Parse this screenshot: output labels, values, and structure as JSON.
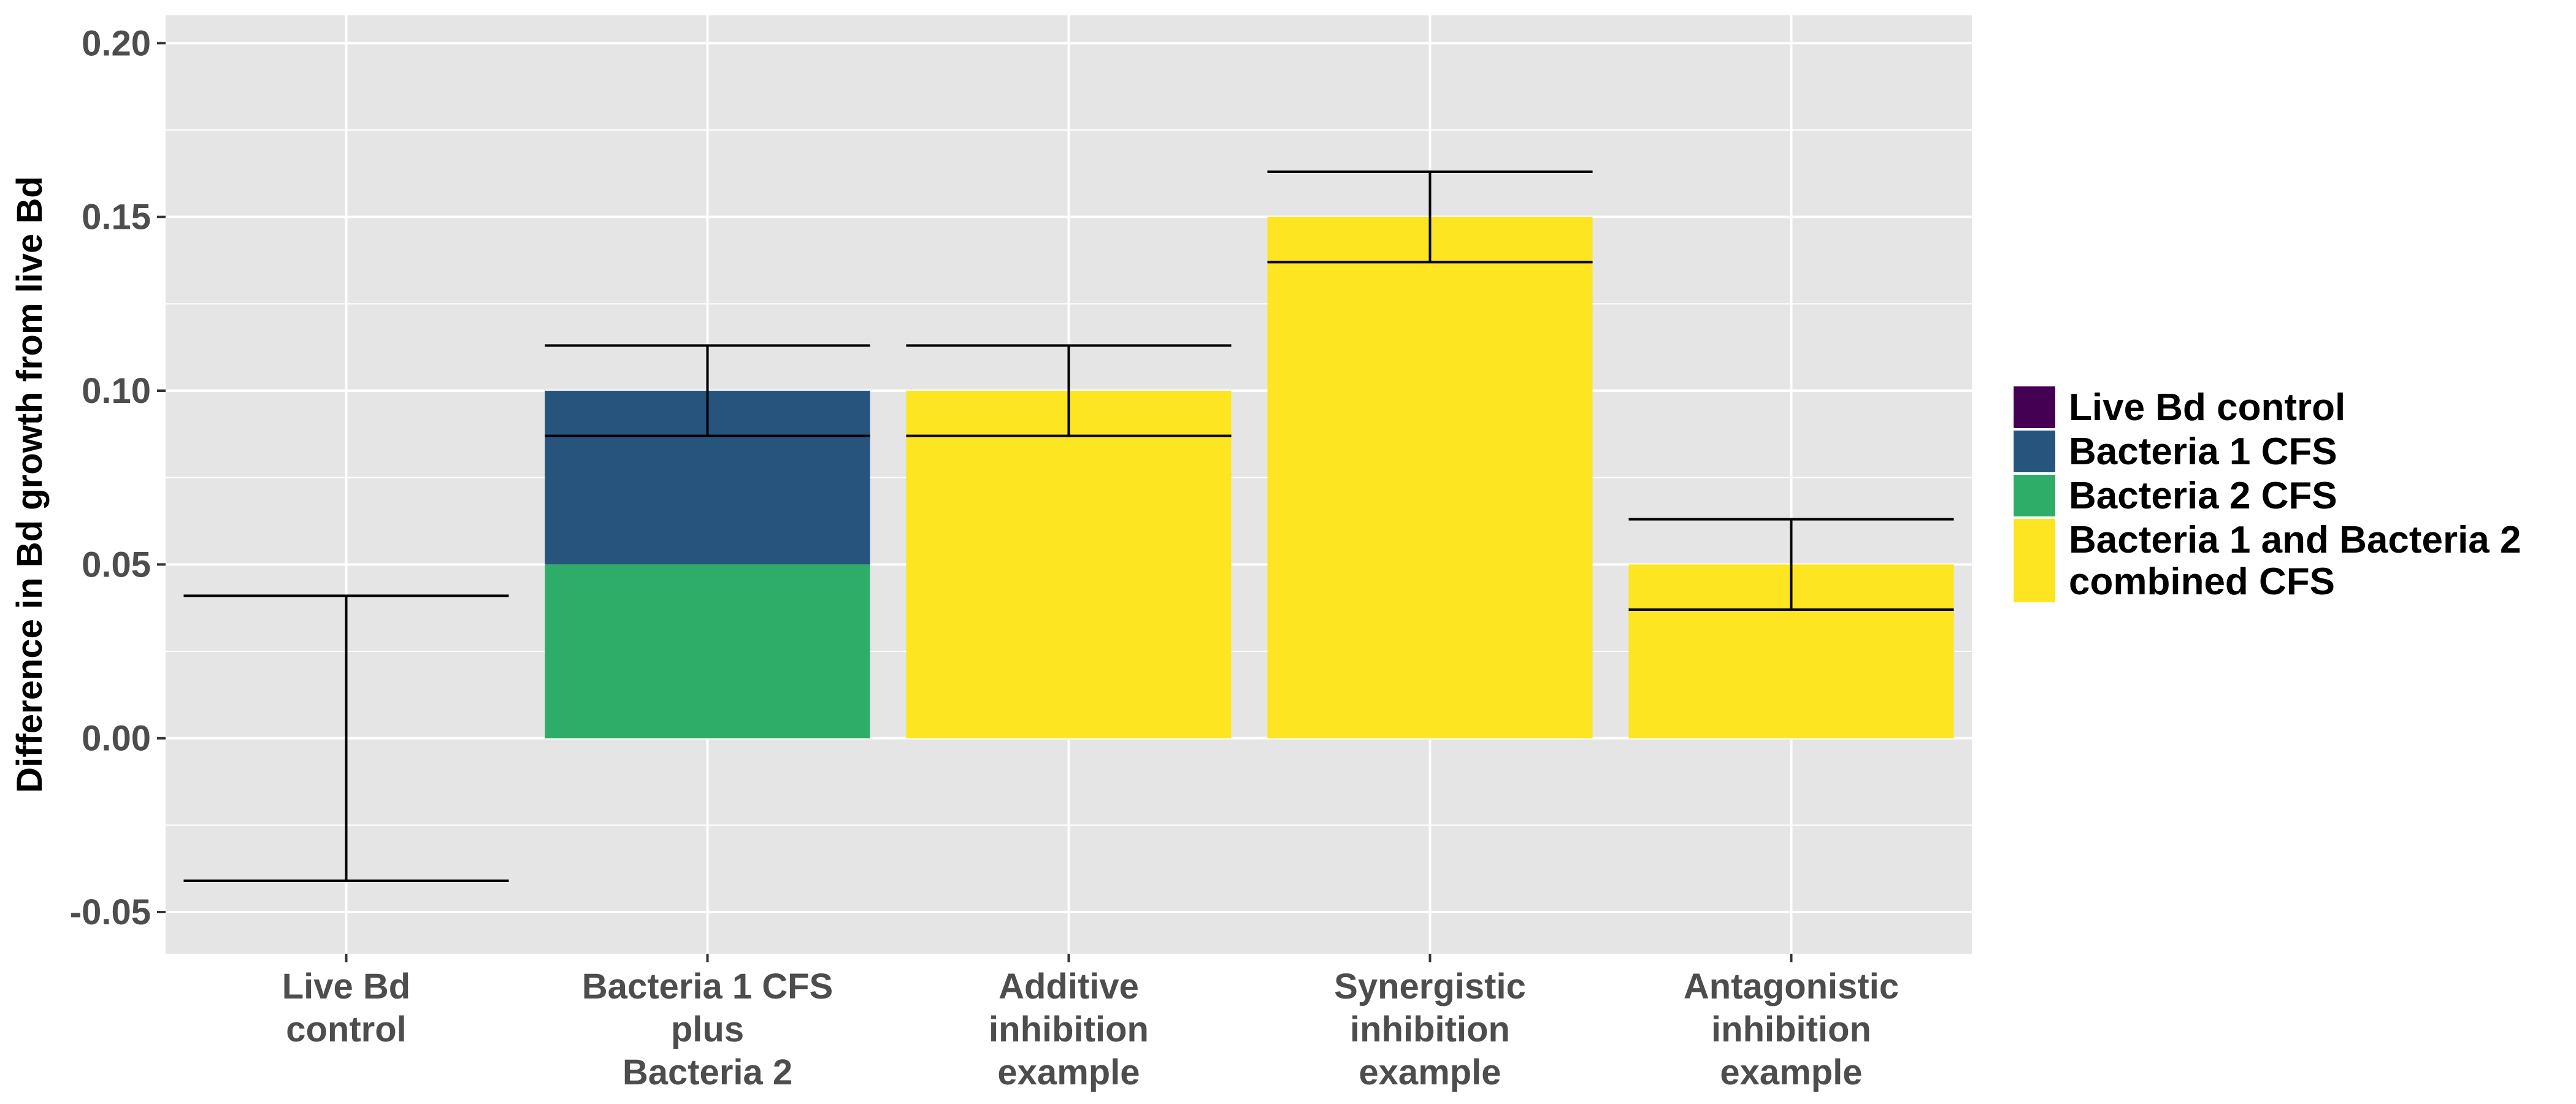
{
  "chart_data": {
    "type": "bar",
    "stacked": true,
    "title": "",
    "xlabel": "",
    "ylabel": "Difference in Bd growth from live Bd",
    "ylim": [
      -0.062,
      0.208
    ],
    "yticks": [
      -0.05,
      0.0,
      0.05,
      0.1,
      0.15,
      0.2
    ],
    "ytick_labels": [
      "-0.05",
      "0.00",
      "0.05",
      "0.10",
      "0.15",
      "0.20"
    ],
    "grid": true,
    "legend_position": "right",
    "categories": [
      {
        "lines": [
          "Live Bd",
          "control"
        ]
      },
      {
        "lines": [
          "Bacteria 1 CFS",
          "plus",
          "Bacteria 2"
        ]
      },
      {
        "lines": [
          "Additive",
          "inhibition",
          "example"
        ]
      },
      {
        "lines": [
          "Synergistic",
          "inhibition",
          "example"
        ]
      },
      {
        "lines": [
          "Antagonistic",
          "inhibition",
          "example"
        ]
      }
    ],
    "series": [
      {
        "name": "Live Bd control",
        "color": "#440154",
        "values": [
          0,
          0,
          0,
          0,
          0
        ]
      },
      {
        "name": "Bacteria 1 CFS",
        "color": "#26547C",
        "values": [
          0,
          0.05,
          0,
          0,
          0
        ]
      },
      {
        "name": "Bacteria 2 CFS",
        "color": "#2EAD68",
        "values": [
          0,
          0.05,
          0,
          0,
          0
        ]
      },
      {
        "name": "Bacteria 1 and Bacteria 2 combined CFS",
        "color": "#FDE521",
        "values": [
          0,
          0,
          0.1,
          0.15,
          0.05
        ]
      }
    ],
    "stack_order_bottom_to_top": [
      "Bacteria 2 CFS",
      "Bacteria 1 CFS",
      "Bacteria 1 and Bacteria 2 combined CFS",
      "Live Bd control"
    ],
    "error_bars": [
      {
        "center": 0.0,
        "low": -0.041,
        "high": 0.041
      },
      {
        "center": 0.1,
        "low": 0.087,
        "high": 0.113
      },
      {
        "center": 0.1,
        "low": 0.087,
        "high": 0.113
      },
      {
        "center": 0.15,
        "low": 0.137,
        "high": 0.163
      },
      {
        "center": 0.05,
        "low": 0.037,
        "high": 0.063
      }
    ],
    "legend": [
      {
        "series": "Live Bd control",
        "lines": [
          "Live Bd control"
        ]
      },
      {
        "series": "Bacteria 1 CFS",
        "lines": [
          "Bacteria 1 CFS"
        ]
      },
      {
        "series": "Bacteria 2 CFS",
        "lines": [
          "Bacteria 2 CFS"
        ]
      },
      {
        "series": "Bacteria 1 and Bacteria 2 combined CFS",
        "lines": [
          "Bacteria 1 and Bacteria 2",
          "combined CFS"
        ]
      }
    ],
    "colors": {
      "panel_background": "#E5E5E5",
      "grid_line": "#FFFFFF",
      "error_bar": "#000000"
    }
  }
}
